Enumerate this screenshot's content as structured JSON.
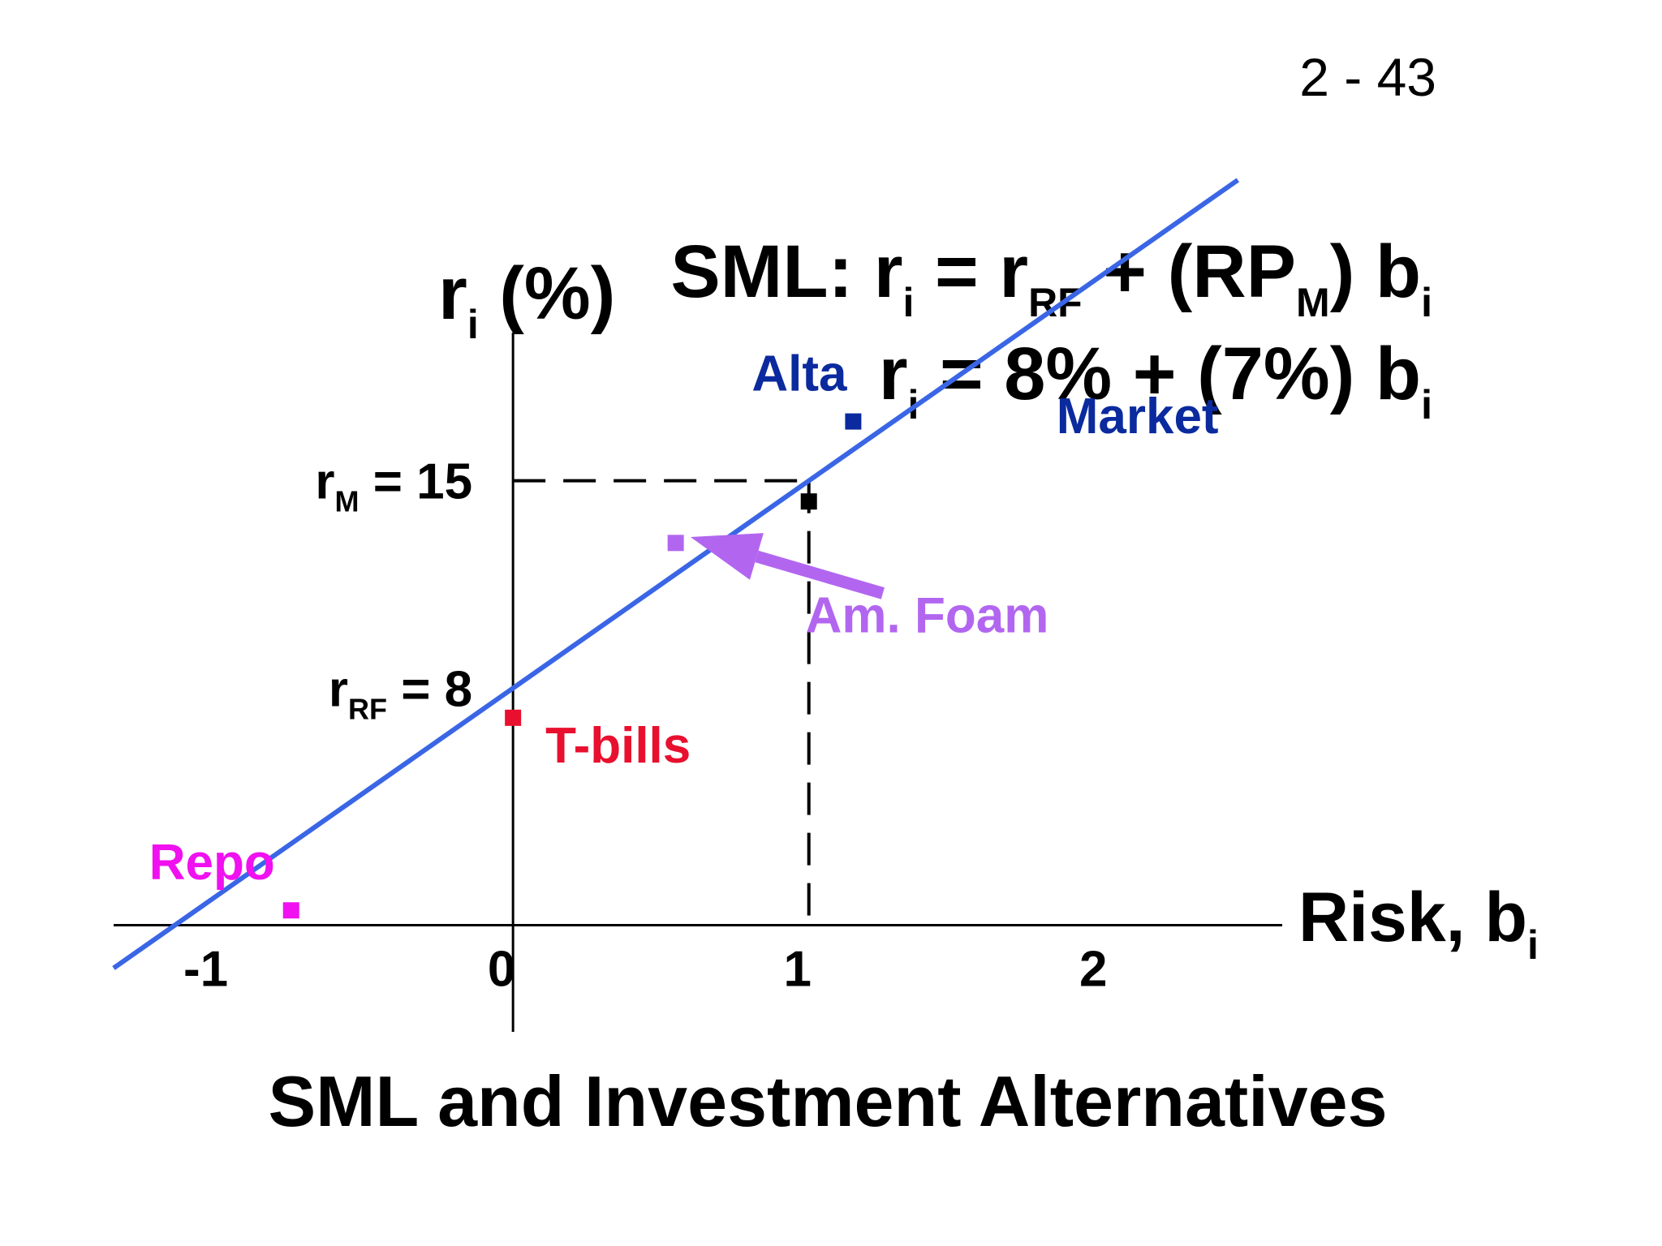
{
  "slide_number": "2 - 43",
  "formula": {
    "line1_prefix": "SML: r",
    "line1_sub_i": "i",
    "line1_eq": " = r",
    "line1_sub_rf": "RF",
    "line1_plus": " + (RP",
    "line1_sub_m": "M",
    "line1_close": ") b",
    "line1_sub_i2": "i",
    "line2_r": "r",
    "line2_sub_i": "i",
    "line2_body": " = 8% + (7%) b",
    "line2_sub_i2": "i"
  },
  "footer_title": "SML and Investment Alternatives",
  "colors": {
    "sml_line": "#3a66e6",
    "alta": "#0b2a9e",
    "market": "#0b2a9e",
    "am_foam": "#b266f0",
    "tbills": "#e8102e",
    "repo": "#f010f0",
    "market_point": "#000000"
  },
  "chart_data": {
    "type": "line",
    "title": "SML and Investment Alternatives",
    "xlabel": "Risk, b",
    "xlabel_sub": "i",
    "ylabel": "r",
    "ylabel_sub": "i",
    "ylabel_suffix": " (%)",
    "xlim": [
      -1.35,
      2.6
    ],
    "ylim": [
      -3.6,
      20
    ],
    "x_ticks": [
      {
        "value": -1,
        "label": "-1"
      },
      {
        "value": 0,
        "label": "0"
      },
      {
        "value": 1,
        "label": "1"
      },
      {
        "value": 2,
        "label": "2"
      }
    ],
    "sml": {
      "intercept": 8,
      "slope": 7,
      "x_start": -1.35,
      "x_end": 2.45
    },
    "reference_lines": [
      {
        "id": "rm",
        "y": 15,
        "label_main": "r",
        "label_sub": "M",
        "label_value": "   = 15"
      },
      {
        "id": "rrf",
        "y": 8,
        "label_main": "r",
        "label_sub": "RF",
        "label_value": " =   8"
      }
    ],
    "market_dashed": {
      "x": 1,
      "y": 15
    },
    "points": [
      {
        "id": "alta",
        "label": "Alta",
        "x": 1.15,
        "y": 17.0
      },
      {
        "id": "market",
        "label": "Market",
        "x": 1.0,
        "y": 14.3
      },
      {
        "id": "am_foam",
        "label": "Am. Foam",
        "x": 0.55,
        "y": 12.9
      },
      {
        "id": "tbills",
        "label": "T-bills",
        "x": 0.0,
        "y": 7.0
      },
      {
        "id": "repo",
        "label": "Repo",
        "x": -0.75,
        "y": 0.5
      }
    ],
    "arrow": {
      "from": [
        1.25,
        11.2
      ],
      "to": [
        0.6,
        13.1
      ]
    }
  }
}
